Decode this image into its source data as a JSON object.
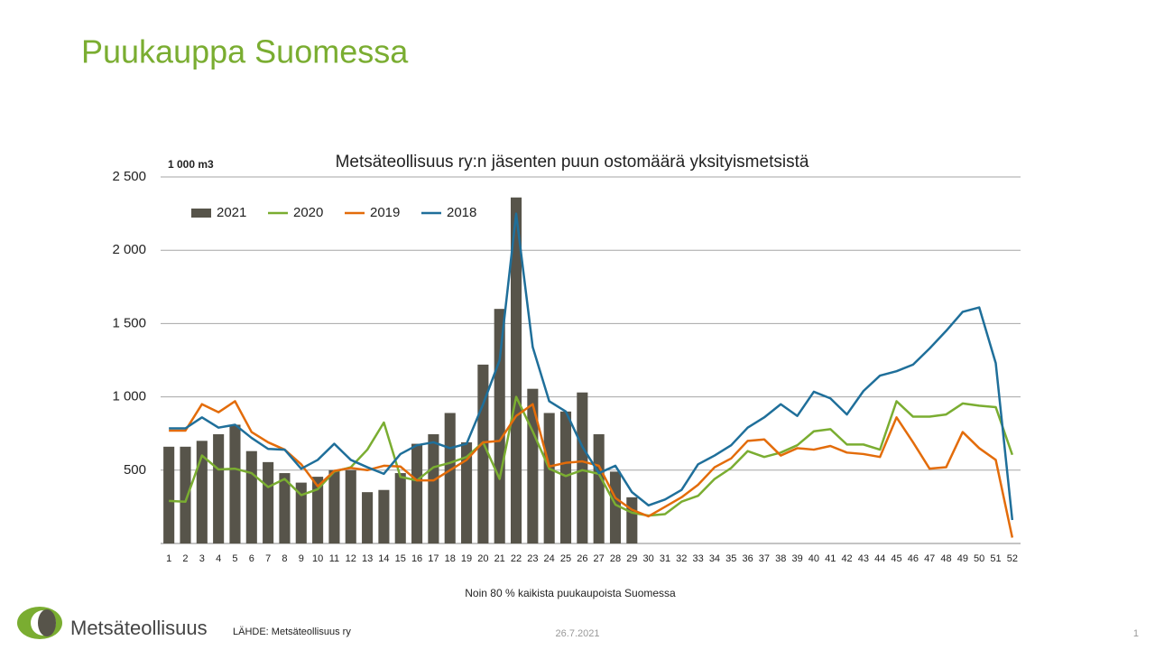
{
  "slide_title": "Puukauppa Suomessa",
  "chart_data": {
    "type": "bar_line",
    "title": "Metsäteollisuus ry:n jäsenten puun ostomäärä yksityismetsistä",
    "unit_label": "1 000 m3",
    "note": "Noin 80 % kaikista puukaupoista Suomessa",
    "categories": [
      "1",
      "2",
      "3",
      "4",
      "5",
      "6",
      "7",
      "8",
      "9",
      "10",
      "11",
      "12",
      "13",
      "14",
      "15",
      "16",
      "17",
      "18",
      "19",
      "20",
      "21",
      "22",
      "23",
      "24",
      "25",
      "26",
      "27",
      "28",
      "29",
      "30",
      "31",
      "32",
      "33",
      "34",
      "35",
      "36",
      "37",
      "38",
      "39",
      "40",
      "41",
      "42",
      "43",
      "44",
      "45",
      "46",
      "47",
      "48",
      "49",
      "50",
      "51",
      "52"
    ],
    "series": [
      {
        "name": "2021",
        "type": "bar",
        "color": "#57544a",
        "values": [
          660,
          660,
          700,
          745,
          810,
          630,
          555,
          480,
          415,
          455,
          500,
          500,
          350,
          365,
          480,
          680,
          745,
          890,
          690,
          1220,
          1600,
          2360,
          1055,
          890,
          900,
          1030,
          745,
          490,
          315,
          null,
          null,
          null,
          null,
          null,
          null,
          null,
          null,
          null,
          null,
          null,
          null,
          null,
          null,
          null,
          null,
          null,
          null,
          null,
          null,
          null,
          null,
          null
        ]
      },
      {
        "name": "2020",
        "type": "line",
        "color": "#7aad31",
        "values": [
          290,
          285,
          600,
          505,
          510,
          480,
          385,
          440,
          330,
          370,
          490,
          520,
          640,
          825,
          455,
          430,
          520,
          550,
          590,
          690,
          440,
          1000,
          765,
          510,
          460,
          500,
          475,
          265,
          210,
          190,
          200,
          285,
          325,
          440,
          515,
          630,
          590,
          620,
          670,
          765,
          780,
          675,
          675,
          640,
          970,
          865,
          865,
          880,
          955,
          940,
          930,
          605
        ]
      },
      {
        "name": "2019",
        "type": "line",
        "color": "#e36c0a",
        "values": [
          770,
          770,
          950,
          895,
          970,
          760,
          690,
          640,
          540,
          390,
          495,
          515,
          500,
          530,
          525,
          430,
          430,
          500,
          570,
          690,
          700,
          870,
          950,
          525,
          550,
          560,
          530,
          310,
          230,
          185,
          250,
          315,
          400,
          520,
          580,
          700,
          710,
          600,
          650,
          640,
          665,
          620,
          610,
          590,
          860,
          690,
          510,
          520,
          760,
          650,
          570,
          40
        ]
      },
      {
        "name": "2018",
        "type": "line",
        "color": "#1f6f9a",
        "values": [
          785,
          785,
          860,
          790,
          810,
          720,
          645,
          640,
          510,
          570,
          680,
          570,
          520,
          475,
          610,
          670,
          690,
          650,
          680,
          950,
          1250,
          2250,
          1340,
          970,
          900,
          660,
          480,
          530,
          350,
          260,
          300,
          365,
          540,
          600,
          670,
          790,
          860,
          950,
          870,
          1035,
          990,
          880,
          1040,
          1145,
          1175,
          1220,
          1330,
          1450,
          1580,
          1610,
          1230,
          160
        ]
      }
    ],
    "ylim": [
      0,
      2500
    ],
    "yticks": [
      {
        "value": 500,
        "label": "500"
      },
      {
        "value": 1000,
        "label": "1 000"
      },
      {
        "value": 1500,
        "label": "1 500"
      },
      {
        "value": 2000,
        "label": "2 000"
      },
      {
        "value": 2500,
        "label": "2 500"
      }
    ],
    "grid": true,
    "legend": "top-left"
  },
  "footer": {
    "logo": "Metsäteollisuus",
    "source": "LÄHDE:  Metsäteollisuus ry",
    "date": "26.7.2021",
    "page": "1"
  }
}
